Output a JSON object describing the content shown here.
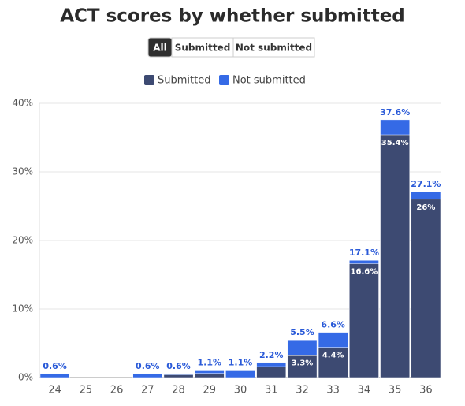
{
  "controls": {
    "buttons": [
      "All",
      "Submitted",
      "Not submitted"
    ],
    "active": 0
  },
  "chart_data": {
    "type": "bar",
    "title": "ACT scores by whether submitted",
    "categories": [
      "24",
      "25",
      "26",
      "27",
      "28",
      "29",
      "30",
      "31",
      "32",
      "33",
      "34",
      "35",
      "36"
    ],
    "series": [
      {
        "name": "Not submitted",
        "color": "#356ae6",
        "values": [
          0.6,
          null,
          null,
          0.6,
          0.6,
          1.1,
          1.1,
          2.2,
          5.5,
          6.6,
          17.1,
          37.6,
          27.1
        ],
        "value_labels": [
          "0.6%",
          null,
          null,
          "0.6%",
          "0.6%",
          "1.1%",
          "1.1%",
          "2.2%",
          "5.5%",
          "6.6%",
          "17.1%",
          "37.6%",
          "27.1%"
        ]
      },
      {
        "name": "Submitted",
        "color": "#3d4a72",
        "values": [
          null,
          null,
          null,
          null,
          0.4,
          0.6,
          null,
          1.6,
          3.3,
          4.4,
          16.6,
          35.4,
          26
        ],
        "value_labels": [
          null,
          null,
          null,
          null,
          null,
          null,
          null,
          null,
          "3.3%",
          "4.4%",
          "16.6%",
          "35.4%",
          "26%"
        ]
      }
    ],
    "ylim": [
      0,
      40
    ],
    "yticks": [
      {
        "value": 0,
        "label": "0%"
      },
      {
        "value": 10,
        "label": "10%"
      },
      {
        "value": 20,
        "label": "20%"
      },
      {
        "value": 30,
        "label": "30%"
      },
      {
        "value": 40,
        "label": "40%"
      }
    ],
    "grid": true
  }
}
